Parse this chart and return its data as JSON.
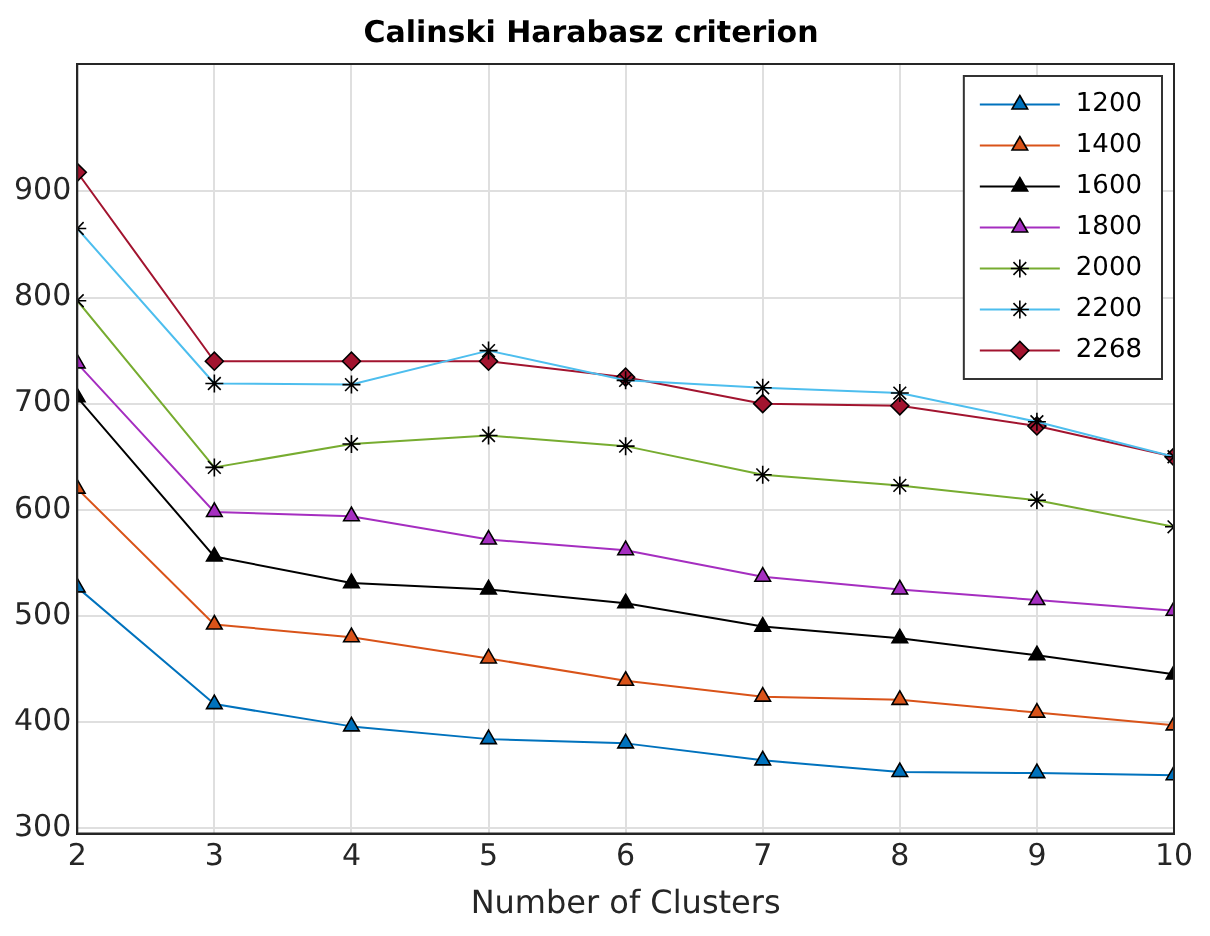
{
  "chart_data": {
    "type": "line",
    "title": "Calinski Harabasz criterion",
    "xlabel": "Number of Clusters",
    "x": [
      2,
      3,
      4,
      5,
      6,
      7,
      8,
      9,
      10
    ],
    "xlim": [
      2,
      10
    ],
    "xticks": [
      2,
      3,
      4,
      5,
      6,
      7,
      8,
      9,
      10
    ],
    "ylim": [
      295,
      1020
    ],
    "yticks": [
      300,
      400,
      500,
      600,
      700,
      800,
      900
    ],
    "grid": true,
    "legend": "top right",
    "line_style": "solid",
    "series": [
      {
        "name": "1200",
        "color": "#0072bd",
        "marker": "triangle",
        "values": [
          527,
          417,
          396,
          384,
          380,
          364,
          353,
          352,
          350
        ]
      },
      {
        "name": "1400",
        "color": "#d95319",
        "marker": "triangle",
        "values": [
          620,
          492,
          480,
          460,
          439,
          424,
          421,
          409,
          397
        ]
      },
      {
        "name": "1600",
        "color": "#000000",
        "marker": "triangle",
        "values": [
          706,
          556,
          531,
          525,
          512,
          490,
          479,
          463,
          445
        ]
      },
      {
        "name": "1800",
        "color": "#a52ec0",
        "marker": "triangle",
        "values": [
          738,
          598,
          594,
          572,
          562,
          537,
          525,
          515,
          505
        ]
      },
      {
        "name": "2000",
        "color": "#77ac30",
        "marker": "cross",
        "values": [
          797,
          640,
          662,
          670,
          660,
          633,
          623,
          609,
          584
        ]
      },
      {
        "name": "2200",
        "color": "#4dbeee",
        "marker": "cross",
        "values": [
          865,
          719,
          718,
          750,
          722,
          715,
          710,
          683,
          650
        ]
      },
      {
        "name": "2268",
        "color": "#a2142f",
        "marker": "diamond",
        "values": [
          918,
          740,
          740,
          740,
          725,
          700,
          698,
          679,
          650
        ]
      }
    ]
  }
}
